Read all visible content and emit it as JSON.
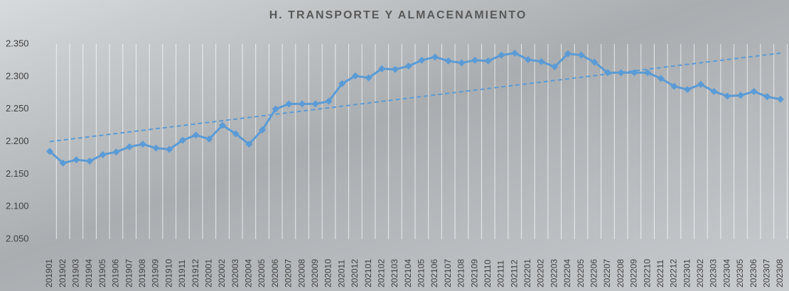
{
  "chart_data": {
    "type": "line",
    "title": "H. TRANSPORTE Y ALMACENAMIENTO",
    "categories": [
      "201901",
      "201902",
      "201903",
      "201904",
      "201905",
      "201906",
      "201907",
      "201908",
      "201909",
      "201910",
      "201911",
      "201912",
      "202001",
      "202002",
      "202003",
      "202004",
      "202005",
      "202006",
      "202007",
      "202008",
      "202009",
      "202010",
      "202011",
      "202012",
      "202101",
      "202102",
      "202103",
      "202104",
      "202105",
      "202106",
      "202107",
      "202108",
      "202109",
      "202110",
      "202111",
      "202112",
      "202201",
      "202202",
      "202203",
      "202204",
      "202205",
      "202206",
      "202207",
      "202208",
      "202209",
      "202210",
      "202211",
      "202212",
      "202301",
      "202302",
      "202303",
      "202304",
      "202305",
      "202306",
      "202307",
      "202308"
    ],
    "series": [
      {
        "color": "#5b9bd5",
        "values": [
          2185,
          2167,
          2172,
          2170,
          2180,
          2184,
          2192,
          2196,
          2190,
          2188,
          2202,
          2210,
          2204,
          2225,
          2212,
          2196,
          2218,
          2250,
          2258,
          2258,
          2258,
          2262,
          2289,
          2301,
          2298,
          2312,
          2311,
          2316,
          2325,
          2330,
          2324,
          2321,
          2325,
          2324,
          2333,
          2336,
          2326,
          2323,
          2315,
          2335,
          2333,
          2322,
          2306,
          2306,
          2306,
          2306,
          2297,
          2285,
          2280,
          2288,
          2277,
          2270,
          2271,
          2277,
          2269,
          2265
        ]
      }
    ],
    "trendline": {
      "start": 2200,
      "end": 2336,
      "color": "#5b9bd5",
      "dashed": true
    },
    "ylim": [
      2050,
      2350
    ],
    "yticks": [
      {
        "value": 2050,
        "label": "2.050"
      },
      {
        "value": 2100,
        "label": "2.100"
      },
      {
        "value": 2150,
        "label": "2.150"
      },
      {
        "value": 2200,
        "label": "2.200"
      },
      {
        "value": 2250,
        "label": "2.250"
      },
      {
        "value": 2300,
        "label": "2.300"
      },
      {
        "value": 2350,
        "label": "2.350"
      }
    ],
    "grid": true
  }
}
